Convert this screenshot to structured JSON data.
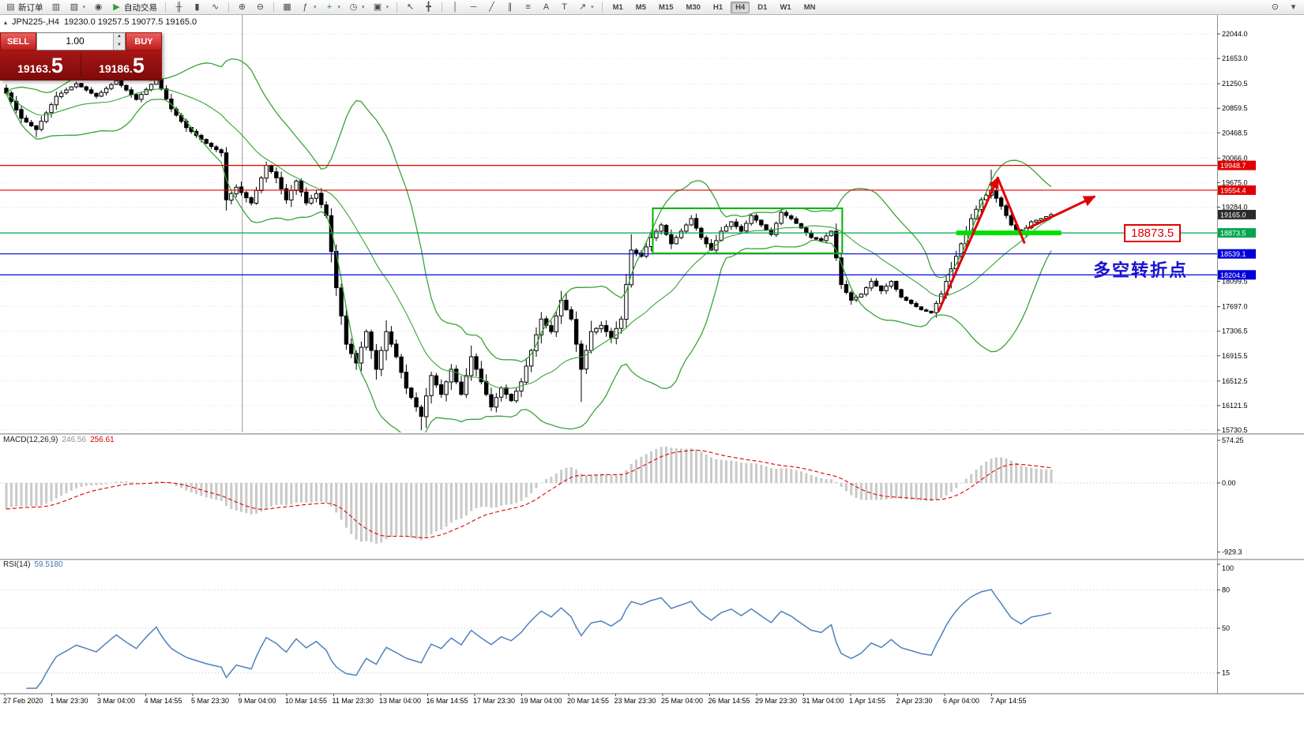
{
  "toolbar": {
    "items": [
      {
        "t": "btn",
        "name": "new-order-button",
        "icon_name": "new-order-icon",
        "g": "▤",
        "label": "新订单"
      },
      {
        "t": "icon",
        "name": "chart-window-button",
        "icon_name": "chart-window-icon",
        "g": "▥"
      },
      {
        "t": "icon",
        "name": "profiles-button",
        "icon_name": "profiles-icon",
        "g": "▧",
        "caret": true
      },
      {
        "t": "icon",
        "name": "favorites-button",
        "icon_name": "favorites-icon",
        "g": "◉"
      },
      {
        "t": "btn",
        "name": "auto-trading-button",
        "icon_name": "play-icon",
        "g": "▶",
        "color": "#2f9e2f",
        "label": "自动交易"
      },
      {
        "t": "sep"
      },
      {
        "t": "icon",
        "name": "bar-chart-button",
        "icon_name": "bar-chart-icon",
        "g": "╫"
      },
      {
        "t": "icon",
        "name": "candlestick-chart-button",
        "icon_name": "candlestick-icon",
        "g": "▮"
      },
      {
        "t": "icon",
        "name": "line-chart-button",
        "icon_name": "line-chart-icon",
        "g": "∿"
      },
      {
        "t": "sep"
      },
      {
        "t": "icon",
        "name": "zoom-in-button",
        "icon_name": "zoom-in-icon",
        "g": "⊕"
      },
      {
        "t": "icon",
        "name": "zoom-out-button",
        "icon_name": "zoom-out-icon",
        "g": "⊖"
      },
      {
        "t": "sep"
      },
      {
        "t": "icon",
        "name": "tile-windows-button",
        "icon_name": "tile-windows-icon",
        "g": "▦"
      },
      {
        "t": "icon",
        "name": "indicators-button",
        "icon_name": "indicators-icon",
        "g": "ƒ",
        "caret": true
      },
      {
        "t": "icon",
        "name": "add-indicator-button",
        "icon_name": "plus-icon",
        "g": "+",
        "color": "#1e8e1e",
        "caret": true
      },
      {
        "t": "icon",
        "name": "periods-button",
        "icon_name": "clock-icon",
        "g": "◷",
        "caret": true
      },
      {
        "t": "icon",
        "name": "templates-button",
        "icon_name": "template-icon",
        "g": "▣",
        "caret": true
      },
      {
        "t": "sep"
      },
      {
        "t": "icon",
        "name": "cursor-button",
        "icon_name": "cursor-icon",
        "g": "↖"
      },
      {
        "t": "icon",
        "name": "crosshair-button",
        "icon_name": "crosshair-icon",
        "g": "╋"
      },
      {
        "t": "sep"
      },
      {
        "t": "icon",
        "name": "vertical-line-button",
        "icon_name": "vertical-line-icon",
        "g": "│"
      },
      {
        "t": "icon",
        "name": "horizontal-line-button",
        "icon_name": "horizontal-line-icon",
        "g": "─"
      },
      {
        "t": "icon",
        "name": "trendline-button",
        "icon_name": "trendline-icon",
        "g": "╱"
      },
      {
        "t": "icon",
        "name": "channel-button",
        "icon_name": "channel-icon",
        "g": "∥"
      },
      {
        "t": "icon",
        "name": "fibonacci-button",
        "icon_name": "fibonacci-icon",
        "g": "≡"
      },
      {
        "t": "icon",
        "name": "text-button",
        "icon_name": "text-icon",
        "g": "A"
      },
      {
        "t": "icon",
        "name": "label-button",
        "icon_name": "label-icon",
        "g": "T"
      },
      {
        "t": "icon",
        "name": "arrows-button",
        "icon_name": "arrow-objects-icon",
        "g": "↗",
        "caret": true
      },
      {
        "t": "sep"
      },
      {
        "t": "tf"
      },
      {
        "t": "spacer"
      },
      {
        "t": "icon",
        "name": "search-button",
        "icon_name": "magnifier-icon",
        "g": "⊙"
      },
      {
        "t": "icon",
        "name": "toolbar-menu-button",
        "icon_name": "overflow-icon",
        "g": "▾"
      }
    ],
    "timeframes": [
      "M1",
      "M5",
      "M15",
      "M30",
      "H1",
      "H4",
      "D1",
      "W1",
      "MN"
    ],
    "active_timeframe": "H4"
  },
  "chart_header": {
    "collapse_glyph": "▴",
    "symbol": "JPN225-,H4",
    "ohlc": "19230.0 19257.5 19077.5 19165.0"
  },
  "trade_panel": {
    "sell_label": "SELL",
    "buy_label": "BUY",
    "volume": "1.00",
    "spin_up": "▲",
    "spin_down": "▼",
    "sell_price_small": "19163.",
    "sell_price_big": "5",
    "buy_price_small": "19186.",
    "buy_price_big": "5"
  },
  "indicator_labels": {
    "macd_name": "MACD(12,26,9)",
    "macd_value1": "246.56",
    "macd_value2": "256.61",
    "rsi_name": "RSI(14)",
    "rsi_value": "59.5180"
  },
  "annotations": {
    "turning_point": "多空转折点",
    "price_callout": "18873.5"
  },
  "chart_data": {
    "type": "candlestick",
    "symbol": "JPN225-",
    "timeframe": "H4",
    "price_range": {
      "min": 15730.5,
      "max": 22044.0
    },
    "price_axis_ticks": [
      22044.0,
      21653.0,
      21250.5,
      20859.5,
      20468.5,
      20066.0,
      19675.0,
      19284.0,
      18099.5,
      17697.0,
      17306.5,
      16915.5,
      16512.5,
      16121.5,
      15730.5
    ],
    "horizontal_lines": [
      {
        "value": 19948.7,
        "color": "#e00000",
        "role": "resistance"
      },
      {
        "value": 19554.4,
        "color": "#e00000",
        "role": "resistance"
      },
      {
        "value": 19165.0,
        "color": "#2b2b2b",
        "role": "current-price",
        "label_only": true
      },
      {
        "value": 18873.5,
        "color": "#00a550",
        "role": "support"
      },
      {
        "value": 18539.1,
        "color": "#0000dd",
        "role": "support"
      },
      {
        "value": 18204.6,
        "color": "#0000dd",
        "role": "support"
      }
    ],
    "indicators": {
      "bollinger": {
        "period": 20,
        "deviation": 2,
        "color": "#3aa33a"
      },
      "macd": {
        "fast": 12,
        "slow": 26,
        "signal": 9,
        "current": [
          246.56,
          256.61
        ],
        "axis": [
          [
            574.25,
            "574.25"
          ],
          [
            0,
            "0.00"
          ],
          [
            -929.3,
            "-929.3"
          ]
        ]
      },
      "rsi": {
        "period": 14,
        "current": 59.518,
        "color": "#4f81bd",
        "axis": [
          [
            100,
            "100"
          ],
          [
            80,
            "80"
          ],
          [
            50,
            "50"
          ],
          [
            15,
            "15"
          ]
        ],
        "levels": [
          80,
          50,
          15
        ]
      }
    },
    "time_labels": [
      "27 Feb 2020",
      "1 Mar 23:30",
      "3 Mar 04:00",
      "4 Mar 14:55",
      "5 Mar 23:30",
      "9 Mar 04:00",
      "10 Mar 14:55",
      "11 Mar 23:30",
      "13 Mar 04:00",
      "16 Mar 14:55",
      "17 Mar 23:30",
      "19 Mar 04:00",
      "20 Mar 14:55",
      "23 Mar 23:30",
      "25 Mar 04:00",
      "26 Mar 14:55",
      "29 Mar 23:30",
      "31 Mar 04:00",
      "1 Apr 14:55",
      "2 Apr 23:30",
      "6 Apr 04:00",
      "7 Apr 14:55"
    ],
    "candle_count": 210,
    "close_keypoints": [
      [
        0,
        21100
      ],
      [
        3,
        20700
      ],
      [
        6,
        20520
      ],
      [
        10,
        21050
      ],
      [
        14,
        21250
      ],
      [
        18,
        21050
      ],
      [
        22,
        21300
      ],
      [
        26,
        21000
      ],
      [
        30,
        21320
      ],
      [
        33,
        20850
      ],
      [
        36,
        20550
      ],
      [
        40,
        20300
      ],
      [
        43,
        20150
      ],
      [
        44,
        19400
      ],
      [
        46,
        19600
      ],
      [
        49,
        19350
      ],
      [
        52,
        19950
      ],
      [
        54,
        19750
      ],
      [
        56,
        19400
      ],
      [
        58,
        19700
      ],
      [
        60,
        19350
      ],
      [
        62,
        19500
      ],
      [
        64,
        19150
      ],
      [
        66,
        18000
      ],
      [
        68,
        17100
      ],
      [
        70,
        16800
      ],
      [
        72,
        17300
      ],
      [
        74,
        16700
      ],
      [
        76,
        17300
      ],
      [
        78,
        16900
      ],
      [
        80,
        16400
      ],
      [
        83,
        15950
      ],
      [
        85,
        16600
      ],
      [
        87,
        16300
      ],
      [
        89,
        16700
      ],
      [
        91,
        16300
      ],
      [
        93,
        16900
      ],
      [
        95,
        16500
      ],
      [
        97,
        16100
      ],
      [
        99,
        16400
      ],
      [
        101,
        16200
      ],
      [
        103,
        16500
      ],
      [
        105,
        17000
      ],
      [
        107,
        17500
      ],
      [
        109,
        17300
      ],
      [
        111,
        17800
      ],
      [
        113,
        17500
      ],
      [
        115,
        16700
      ],
      [
        117,
        17300
      ],
      [
        119,
        17400
      ],
      [
        121,
        17200
      ],
      [
        123,
        17500
      ],
      [
        125,
        18600
      ],
      [
        127,
        18500
      ],
      [
        129,
        18800
      ],
      [
        131,
        19000
      ],
      [
        133,
        18700
      ],
      [
        135,
        18900
      ],
      [
        137,
        19100
      ],
      [
        139,
        18800
      ],
      [
        141,
        18600
      ],
      [
        143,
        18900
      ],
      [
        145,
        19050
      ],
      [
        147,
        18900
      ],
      [
        149,
        19150
      ],
      [
        151,
        19000
      ],
      [
        153,
        18850
      ],
      [
        155,
        19200
      ],
      [
        157,
        19100
      ],
      [
        159,
        18950
      ],
      [
        161,
        18800
      ],
      [
        163,
        18750
      ],
      [
        165,
        18900
      ],
      [
        167,
        18050
      ],
      [
        169,
        17800
      ],
      [
        171,
        17900
      ],
      [
        173,
        18100
      ],
      [
        175,
        17950
      ],
      [
        177,
        18100
      ],
      [
        179,
        17850
      ],
      [
        181,
        17750
      ],
      [
        183,
        17650
      ],
      [
        185,
        17600
      ],
      [
        187,
        17900
      ],
      [
        189,
        18300
      ],
      [
        191,
        18700
      ],
      [
        193,
        19100
      ],
      [
        195,
        19400
      ],
      [
        197,
        19550
      ],
      [
        199,
        19300
      ],
      [
        201,
        19000
      ],
      [
        203,
        18850
      ],
      [
        205,
        19050
      ],
      [
        207,
        19100
      ],
      [
        209,
        19165
      ]
    ],
    "wick_overrides": {
      "6": {
        "low": 20400
      },
      "30": {
        "high": 21480
      },
      "44": {
        "low": 19230
      },
      "52": {
        "high": 20010
      },
      "83": {
        "low": 15730.5
      },
      "115": {
        "low": 16180
      },
      "197": {
        "high": 19880
      }
    },
    "objects": {
      "consolidation_box": {
        "from_index": 129.3,
        "to_index": 167.2,
        "top_price": 19265,
        "bottom_price": 18548,
        "color": "#00b400"
      },
      "support_segment": {
        "from_index": 190,
        "to_index": 211,
        "price": 18873.5,
        "color": "#00e000"
      },
      "trend_up_line": [
        [
          186.5,
          17630
        ],
        [
          198.3,
          19750
        ]
      ],
      "trend_down_line": [
        [
          198.3,
          19750
        ],
        [
          203.6,
          18720
        ]
      ],
      "projection_arrow": [
        [
          204.4,
          18950
        ],
        [
          217.6,
          19450
        ]
      ],
      "vertical_separator_index": 47.2,
      "arrow_color": "#e00000"
    }
  }
}
